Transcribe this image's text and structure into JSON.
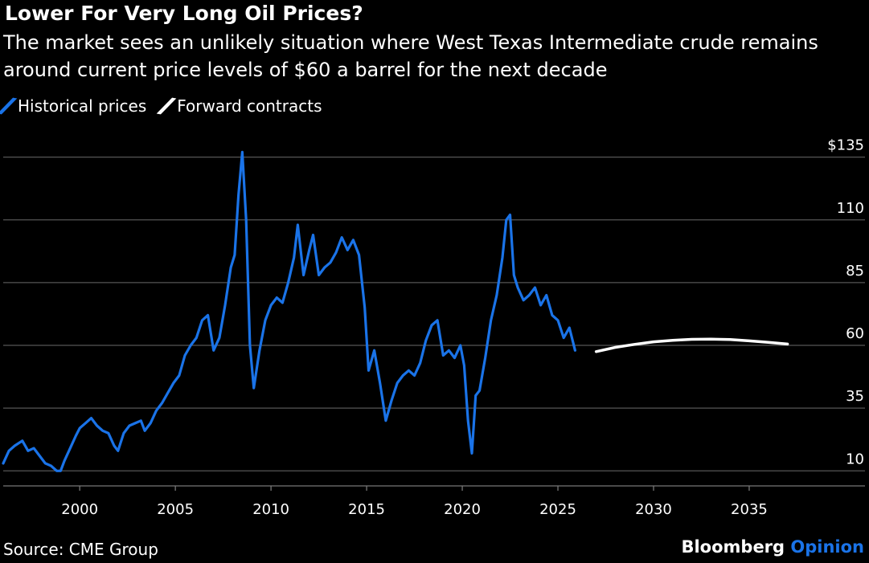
{
  "header": {
    "title": "Lower For Very Long Oil Prices?",
    "subtitle": "The market sees an unlikely situation where West Texas Intermediate crude remains around current price levels of $60 a barrel for the next decade"
  },
  "footer": {
    "source": "Source: CME Group",
    "brand_main": "Bloomberg",
    "brand_accent": "Opinion"
  },
  "colors": {
    "historical": "#1a73e8",
    "forward": "#ffffff",
    "grid": "#555555",
    "background": "#000000"
  },
  "chart_data": {
    "type": "line",
    "title": "Lower For Very Long Oil Prices?",
    "subtitle": "The market sees an unlikely situation where West Texas Intermediate crude remains around current price levels of $60 a barrel for the next decade",
    "xlabel": "",
    "ylabel": "",
    "xlim": [
      1996,
      2038.7
    ],
    "ylim": [
      4,
      140
    ],
    "grid": true,
    "legend_position": "top-left",
    "y_ticks": [
      10,
      35,
      60,
      85,
      110,
      135
    ],
    "y_tick_labels": [
      "10",
      "35",
      "60",
      "85",
      "110",
      "$135"
    ],
    "x_ticks": [
      2000,
      2005,
      2010,
      2015,
      2020,
      2025,
      2030,
      2035
    ],
    "x_tick_labels": [
      "2000",
      "2005",
      "2010",
      "2015",
      "2020",
      "2025",
      "2030",
      "2035"
    ],
    "series": [
      {
        "name": "Historical prices",
        "color": "#1a73e8",
        "x": [
          1996.0,
          1996.3,
          1996.6,
          1997.0,
          1997.3,
          1997.6,
          1997.9,
          1998.2,
          1998.5,
          1998.8,
          1999.0,
          1999.2,
          1999.5,
          1999.8,
          2000.0,
          2000.3,
          2000.6,
          2000.9,
          2001.2,
          2001.5,
          2001.8,
          2002.0,
          2002.3,
          2002.6,
          2002.9,
          2003.2,
          2003.4,
          2003.7,
          2004.0,
          2004.3,
          2004.6,
          2004.9,
          2005.2,
          2005.5,
          2005.8,
          2006.1,
          2006.4,
          2006.7,
          2007.0,
          2007.3,
          2007.6,
          2007.9,
          2008.1,
          2008.3,
          2008.5,
          2008.7,
          2008.9,
          2009.1,
          2009.4,
          2009.7,
          2010.0,
          2010.3,
          2010.6,
          2010.9,
          2011.2,
          2011.4,
          2011.7,
          2012.0,
          2012.2,
          2012.5,
          2012.8,
          2013.1,
          2013.4,
          2013.7,
          2014.0,
          2014.3,
          2014.6,
          2014.9,
          2015.1,
          2015.4,
          2015.7,
          2016.0,
          2016.3,
          2016.6,
          2016.9,
          2017.2,
          2017.5,
          2017.8,
          2018.1,
          2018.4,
          2018.7,
          2019.0,
          2019.3,
          2019.6,
          2019.9,
          2020.1,
          2020.3,
          2020.5,
          2020.7,
          2020.9,
          2021.2,
          2021.5,
          2021.8,
          2022.1,
          2022.3,
          2022.5,
          2022.7,
          2022.9,
          2023.2,
          2023.5,
          2023.8,
          2024.1,
          2024.4,
          2024.7,
          2025.0,
          2025.3,
          2025.6,
          2025.9
        ],
        "values": [
          13,
          18,
          20,
          22,
          18,
          19,
          16,
          13,
          12,
          10,
          10,
          14,
          19,
          24,
          27,
          29,
          31,
          28,
          26,
          25,
          20,
          18,
          25,
          28,
          29,
          30,
          26,
          29,
          34,
          37,
          41,
          45,
          48,
          56,
          60,
          63,
          70,
          72,
          58,
          63,
          76,
          91,
          96,
          120,
          137,
          110,
          60,
          43,
          58,
          70,
          76,
          79,
          77,
          85,
          95,
          108,
          88,
          98,
          104,
          88,
          91,
          93,
          97,
          103,
          98,
          102,
          96,
          75,
          50,
          58,
          45,
          30,
          38,
          45,
          48,
          50,
          48,
          53,
          62,
          68,
          70,
          56,
          58,
          55,
          60,
          52,
          30,
          17,
          40,
          42,
          55,
          70,
          80,
          95,
          110,
          112,
          88,
          83,
          78,
          80,
          83,
          76,
          80,
          72,
          70,
          63,
          67,
          58
        ]
      },
      {
        "name": "Forward contracts",
        "color": "#ffffff",
        "x": [
          2027.0,
          2028.0,
          2029.0,
          2030.0,
          2031.0,
          2032.0,
          2033.0,
          2034.0,
          2035.0,
          2036.0,
          2037.0
        ],
        "values": [
          57.5,
          59.2,
          60.4,
          61.4,
          62.0,
          62.4,
          62.5,
          62.3,
          61.8,
          61.2,
          60.5
        ]
      }
    ]
  }
}
